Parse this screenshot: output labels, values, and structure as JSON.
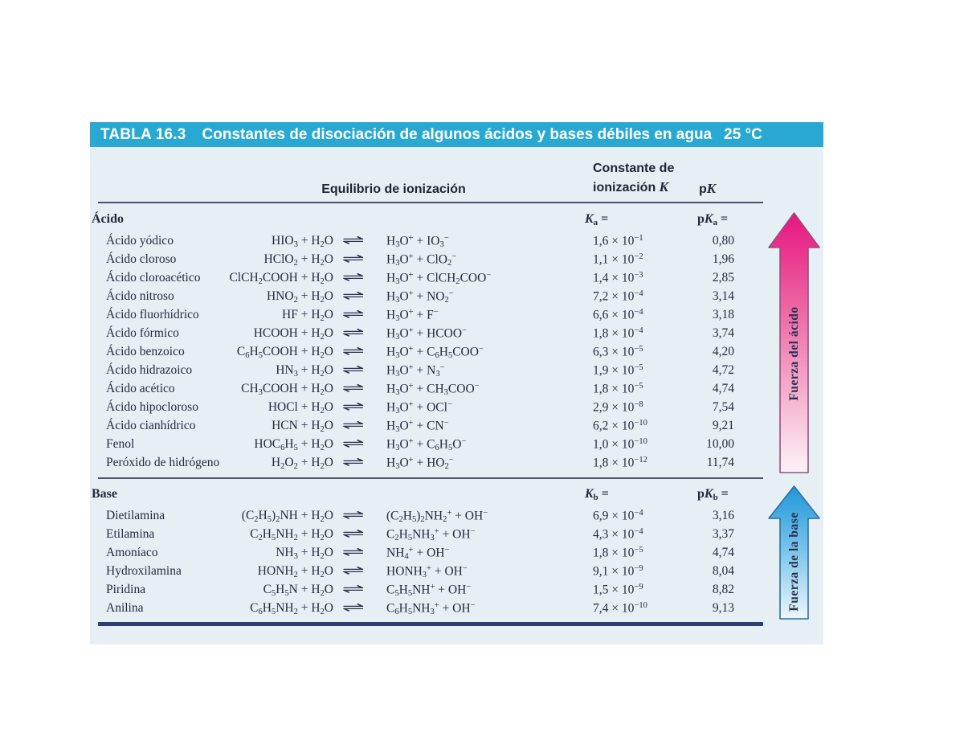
{
  "banner": {
    "label": "TABLA 16.3",
    "title": "Constantes de disociación de algunos ácidos y bases débiles en agua",
    "temperature": "25 °C"
  },
  "column_headers": {
    "equilibrio": "Equilibrio de ionización",
    "constante": "Constante de\nionización ",
    "constante_k": "K",
    "pk_prefix": "p",
    "pk_k": "K"
  },
  "eq_symbol": "⇌",
  "colors": {
    "banner_bg": "#29a9d2",
    "table_bg": "#e6eff4",
    "acid_arrow_top": "#e6157f",
    "base_arrow_top": "#1f97d8",
    "rule_navy": "#303d72"
  },
  "acid_section": {
    "label": "Ácido",
    "k_header": "K_a =",
    "pk_header": "pK_a =",
    "arrow_label": "Fuerza del ácido",
    "rows": [
      {
        "name": "Ácido yódico",
        "left": "HIO_3 + H_2O",
        "right": "H_3O^+ + IO_3^−",
        "k": "1,6 × 10^−1",
        "pk": "0,80"
      },
      {
        "name": "Ácido cloroso",
        "left": "HClO_2 + H_2O",
        "right": "H_3O^+ + ClO_2^−",
        "k": "1,1 × 10^−2",
        "pk": "1,96"
      },
      {
        "name": "Ácido cloroacético",
        "left": "ClCH_2COOH + H_2O",
        "right": "H_3O^+ + ClCH_2COO^−",
        "k": "1,4 × 10^−3",
        "pk": "2,85"
      },
      {
        "name": "Ácido nitroso",
        "left": "HNO_2 + H_2O",
        "right": "H_3O^+ + NO_2^−",
        "k": "7,2 × 10^−4",
        "pk": "3,14"
      },
      {
        "name": "Ácido fluorhídrico",
        "left": "HF + H_2O",
        "right": "H_3O^+ + F^−",
        "k": "6,6 × 10^−4",
        "pk": "3,18"
      },
      {
        "name": "Ácido fórmico",
        "left": "HCOOH + H_2O",
        "right": "H_3O^+ + HCOO^−",
        "k": "1,8 × 10^−4",
        "pk": "3,74"
      },
      {
        "name": "Ácido benzoico",
        "left": "C_6H_5COOH + H_2O",
        "right": "H_3O^+ + C_6H_5COO^−",
        "k": "6,3 × 10^−5",
        "pk": "4,20"
      },
      {
        "name": "Ácido hidrazoico",
        "left": "HN_3 + H_2O",
        "right": "H_3O^+ + N_3^−",
        "k": "1,9 × 10^−5",
        "pk": "4,72"
      },
      {
        "name": "Ácido acético",
        "left": "CH_3COOH + H_2O",
        "right": "H_3O^+ + CH_3COO^−",
        "k": "1,8 × 10^−5",
        "pk": "4,74"
      },
      {
        "name": "Ácido hipocloroso",
        "left": "HOCl + H_2O",
        "right": "H_3O^+ + OCl^−",
        "k": "2,9 × 10^−8",
        "pk": "7,54"
      },
      {
        "name": "Ácido cianhídrico",
        "left": "HCN + H_2O",
        "right": "H_3O^+ + CN^−",
        "k": "6,2 × 10^−10",
        "pk": "9,21"
      },
      {
        "name": "Fenol",
        "left": "HOC_6H_5 + H_2O",
        "right": "H_3O^+ + C_6H_5O^−",
        "k": "1,0 × 10^−10",
        "pk": "10,00"
      },
      {
        "name": "Peróxido de hidrógeno",
        "left": "H_2O_2 + H_2O",
        "right": "H_3O^+ + HO_2^−",
        "k": "1,8 × 10^−12",
        "pk": "11,74"
      }
    ]
  },
  "base_section": {
    "label": "Base",
    "k_header": "K_b =",
    "pk_header": "pK_b =",
    "arrow_label": "Fuerza de la base",
    "rows": [
      {
        "name": "Dietilamina",
        "left": "(C_2H_5)_2NH + H_2O",
        "right": "(C_2H_5)_2NH_2^+ + OH^−",
        "k": "6,9 × 10^−4",
        "pk": "3,16"
      },
      {
        "name": "Etilamina",
        "left": "C_2H_5NH_2 + H_2O",
        "right": "C_2H_5NH_3^+ + OH^−",
        "k": "4,3 × 10^−4",
        "pk": "3,37"
      },
      {
        "name": "Amoníaco",
        "left": "NH_3 + H_2O",
        "right": "NH_4^+ + OH^−",
        "k": "1,8 × 10^−5",
        "pk": "4,74"
      },
      {
        "name": "Hydroxilamina",
        "left": "HONH_2 + H_2O",
        "right": "HONH_3^+ + OH^−",
        "k": "9,1 × 10^−9",
        "pk": "8,04"
      },
      {
        "name": "Piridina",
        "left": "C_5H_5N + H_2O",
        "right": "C_5H_5NH^+ + OH^−",
        "k": "1,5 × 10^−9",
        "pk": "8,82"
      },
      {
        "name": "Anilina",
        "left": "C_6H_5NH_2 + H_2O",
        "right": "C_6H_5NH_3^+ + OH^−",
        "k": "7,4 × 10^−10",
        "pk": "9,13"
      }
    ]
  }
}
